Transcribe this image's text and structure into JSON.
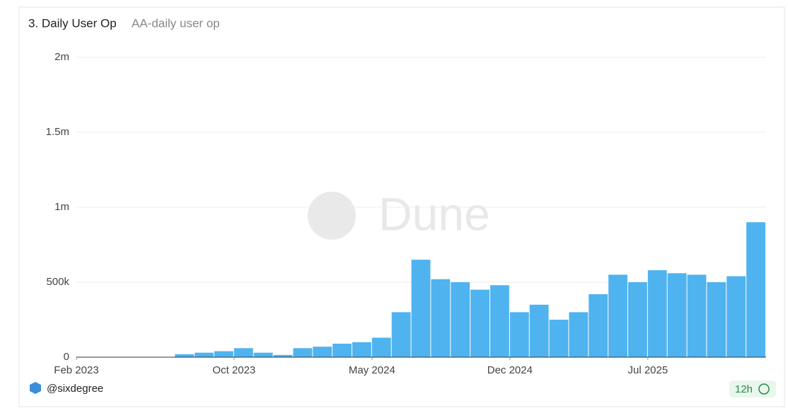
{
  "chart_data": {
    "type": "bar",
    "title": "3. Daily User Op",
    "subtitle": "AA-daily user op",
    "x": [
      "2023-02",
      "2023-03",
      "2023-04",
      "2023-05",
      "2023-06",
      "2023-07",
      "2023-08",
      "2023-09",
      "2023-10",
      "2023-11",
      "2023-12",
      "2024-01",
      "2024-02",
      "2024-03",
      "2024-04",
      "2024-05",
      "2024-06",
      "2024-07",
      "2024-08",
      "2024-09",
      "2024-10",
      "2024-11",
      "2024-12",
      "2025-01",
      "2025-02",
      "2025-03",
      "2025-04",
      "2025-05",
      "2025-06",
      "2025-07",
      "2025-08",
      "2025-09",
      "2025-10",
      "2025-11",
      "2025-12"
    ],
    "values": [
      0,
      0,
      0,
      0,
      0,
      20000,
      30000,
      40000,
      60000,
      30000,
      15000,
      60000,
      70000,
      90000,
      100000,
      130000,
      300000,
      650000,
      520000,
      500000,
      450000,
      480000,
      300000,
      350000,
      250000,
      300000,
      420000,
      550000,
      500000,
      580000,
      560000,
      550000,
      500000,
      540000,
      900000
    ],
    "color": "#4fb3f0",
    "ylim": [
      0,
      2000000
    ],
    "yticks": [
      {
        "value": 0,
        "label": "0"
      },
      {
        "value": 500000,
        "label": "500k"
      },
      {
        "value": 1000000,
        "label": "1m"
      },
      {
        "value": 1500000,
        "label": "1.5m"
      },
      {
        "value": 2000000,
        "label": "2m"
      }
    ],
    "xticks": [
      {
        "value": "2023-02",
        "label": "Feb 2023"
      },
      {
        "value": "2023-10",
        "label": "Oct 2023"
      },
      {
        "value": "2024-05",
        "label": "May 2024"
      },
      {
        "value": "2024-12",
        "label": "Dec 2024"
      },
      {
        "value": "2025-07",
        "label": "Jul 2025"
      }
    ],
    "grid": true
  },
  "watermark": "Dune",
  "author": "@sixdegree",
  "refresh": "12h"
}
